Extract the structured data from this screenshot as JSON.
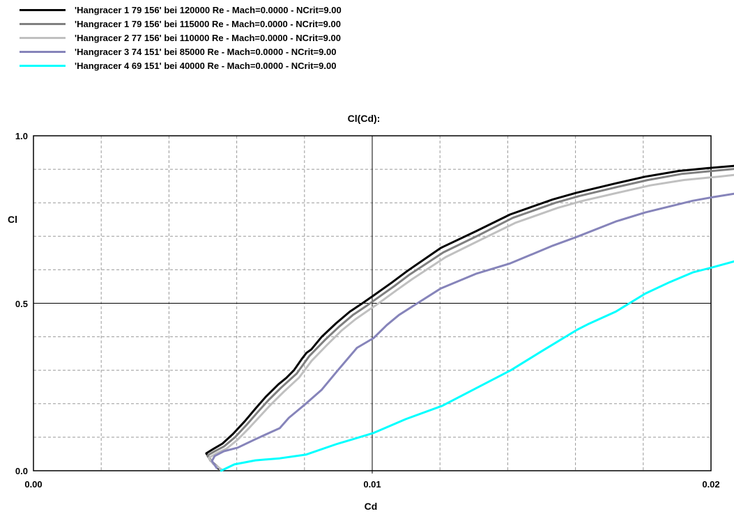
{
  "chart": {
    "title": "Cl(Cd):",
    "xlabel": "Cd",
    "ylabel": "Cl",
    "x_ticks": [
      {
        "value": 0.0,
        "label": "0.00"
      },
      {
        "value": 0.01,
        "label": "0.01"
      },
      {
        "value": 0.02,
        "label": "0.02"
      }
    ],
    "y_ticks": [
      {
        "value": 1.0,
        "label": "1.0"
      },
      {
        "value": 0.5,
        "label": "0.5"
      },
      {
        "value": 0.0,
        "label": "0.0"
      }
    ]
  },
  "colors": {
    "background": "#ffffff",
    "grid": "#999999",
    "axis": "#000000",
    "text": "#000000"
  },
  "chart_data": {
    "type": "line",
    "title": "Cl(Cd):",
    "xlabel": "Cd",
    "ylabel": "Cl",
    "xlim": [
      0.0,
      0.02
    ],
    "ylim": [
      0.0,
      1.0
    ],
    "x_grid_step": 0.002,
    "y_grid_step": 0.1,
    "grid": "dashed gray minor grid; solid black lines at Cd=0.01 and Cl=0.5; solid border box",
    "legend_position": "top-left above plot",
    "series": [
      {
        "name": "'Hangracer 1 79 156' bei 120000 Re - Mach=0.0000 - NCrit=9.00",
        "color": "#000000",
        "points": [
          [
            0.00546,
            0.006
          ],
          [
            0.00522,
            0.031
          ],
          [
            0.0051,
            0.052
          ],
          [
            0.00531,
            0.065
          ],
          [
            0.00558,
            0.081
          ],
          [
            0.00589,
            0.11
          ],
          [
            0.00624,
            0.148
          ],
          [
            0.00655,
            0.185
          ],
          [
            0.00686,
            0.221
          ],
          [
            0.00723,
            0.258
          ],
          [
            0.00746,
            0.277
          ],
          [
            0.00769,
            0.3
          ],
          [
            0.00793,
            0.335
          ],
          [
            0.00806,
            0.352
          ],
          [
            0.0082,
            0.362
          ],
          [
            0.00851,
            0.4
          ],
          [
            0.00893,
            0.44
          ],
          [
            0.00934,
            0.475
          ],
          [
            0.00971,
            0.5
          ],
          [
            0.01004,
            0.523
          ],
          [
            0.01058,
            0.562
          ],
          [
            0.01103,
            0.596
          ],
          [
            0.01202,
            0.665
          ],
          [
            0.01306,
            0.715
          ],
          [
            0.01407,
            0.765
          ],
          [
            0.01533,
            0.81
          ],
          [
            0.01603,
            0.83
          ],
          [
            0.01719,
            0.858
          ],
          [
            0.01806,
            0.878
          ],
          [
            0.01905,
            0.895
          ],
          [
            0.02007,
            0.905
          ],
          [
            0.02068,
            0.91
          ]
        ]
      },
      {
        "name": "'Hangracer 1 79 156' bei 115000 Re - Mach=0.0000 - NCrit=9.00",
        "color": "#808080",
        "points": [
          [
            0.00553,
            0.004
          ],
          [
            0.00527,
            0.027
          ],
          [
            0.00514,
            0.046
          ],
          [
            0.00535,
            0.058
          ],
          [
            0.00563,
            0.073
          ],
          [
            0.00595,
            0.1
          ],
          [
            0.0063,
            0.138
          ],
          [
            0.00662,
            0.175
          ],
          [
            0.00694,
            0.211
          ],
          [
            0.00731,
            0.248
          ],
          [
            0.00777,
            0.29
          ],
          [
            0.00814,
            0.342
          ],
          [
            0.0086,
            0.39
          ],
          [
            0.00902,
            0.43
          ],
          [
            0.00943,
            0.465
          ],
          [
            0.0098,
            0.49
          ],
          [
            0.01012,
            0.513
          ],
          [
            0.01066,
            0.552
          ],
          [
            0.01111,
            0.586
          ],
          [
            0.0121,
            0.652
          ],
          [
            0.01314,
            0.703
          ],
          [
            0.01415,
            0.755
          ],
          [
            0.01541,
            0.8
          ],
          [
            0.01611,
            0.82
          ],
          [
            0.01727,
            0.848
          ],
          [
            0.01814,
            0.868
          ],
          [
            0.01913,
            0.886
          ],
          [
            0.02015,
            0.896
          ],
          [
            0.02068,
            0.901
          ]
        ]
      },
      {
        "name": "'Hangracer 2 77 156' bei 110000 Re - Mach=0.0000 - NCrit=9.00",
        "color": "#c0c0c0",
        "points": [
          [
            0.00558,
            0.002
          ],
          [
            0.00531,
            0.02
          ],
          [
            0.00517,
            0.038
          ],
          [
            0.0054,
            0.052
          ],
          [
            0.0057,
            0.066
          ],
          [
            0.00602,
            0.092
          ],
          [
            0.00637,
            0.128
          ],
          [
            0.00669,
            0.163
          ],
          [
            0.00701,
            0.198
          ],
          [
            0.00738,
            0.235
          ],
          [
            0.00784,
            0.278
          ],
          [
            0.00821,
            0.328
          ],
          [
            0.00867,
            0.376
          ],
          [
            0.00909,
            0.418
          ],
          [
            0.0095,
            0.452
          ],
          [
            0.00987,
            0.478
          ],
          [
            0.01019,
            0.5
          ],
          [
            0.01073,
            0.54
          ],
          [
            0.01118,
            0.572
          ],
          [
            0.01217,
            0.638
          ],
          [
            0.01321,
            0.69
          ],
          [
            0.01422,
            0.74
          ],
          [
            0.01548,
            0.785
          ],
          [
            0.01618,
            0.805
          ],
          [
            0.01734,
            0.832
          ],
          [
            0.01821,
            0.852
          ],
          [
            0.0192,
            0.868
          ],
          [
            0.02022,
            0.878
          ],
          [
            0.02068,
            0.883
          ]
        ]
      },
      {
        "name": "'Hangracer 3 74 151' bei 85000 Re - Mach=0.0000 - NCrit=9.00",
        "color": "#8684ba",
        "points": [
          [
            0.00541,
            0.008
          ],
          [
            0.00527,
            0.029
          ],
          [
            0.00535,
            0.044
          ],
          [
            0.00562,
            0.058
          ],
          [
            0.00603,
            0.069
          ],
          [
            0.00651,
            0.092
          ],
          [
            0.00696,
            0.113
          ],
          [
            0.00727,
            0.127
          ],
          [
            0.00754,
            0.158
          ],
          [
            0.00779,
            0.179
          ],
          [
            0.00804,
            0.2
          ],
          [
            0.00851,
            0.242
          ],
          [
            0.00897,
            0.298
          ],
          [
            0.00934,
            0.342
          ],
          [
            0.00955,
            0.367
          ],
          [
            0.01004,
            0.396
          ],
          [
            0.01043,
            0.435
          ],
          [
            0.01079,
            0.465
          ],
          [
            0.0113,
            0.498
          ],
          [
            0.01202,
            0.544
          ],
          [
            0.01306,
            0.588
          ],
          [
            0.01407,
            0.619
          ],
          [
            0.01533,
            0.672
          ],
          [
            0.01603,
            0.698
          ],
          [
            0.01719,
            0.744
          ],
          [
            0.01806,
            0.771
          ],
          [
            0.01946,
            0.806
          ],
          [
            0.02007,
            0.817
          ],
          [
            0.02068,
            0.827
          ]
        ]
      },
      {
        "name": "'Hangracer 4 69 151' bei 40000 Re - Mach=0.0000 - NCrit=9.00",
        "color": "#00ffff",
        "points": [
          [
            0.00554,
            0.0
          ],
          [
            0.00593,
            0.019
          ],
          [
            0.00655,
            0.031
          ],
          [
            0.00727,
            0.037
          ],
          [
            0.00804,
            0.048
          ],
          [
            0.00893,
            0.079
          ],
          [
            0.01002,
            0.112
          ],
          [
            0.01099,
            0.154
          ],
          [
            0.01207,
            0.194
          ],
          [
            0.01306,
            0.246
          ],
          [
            0.01409,
            0.3
          ],
          [
            0.01502,
            0.358
          ],
          [
            0.01605,
            0.421
          ],
          [
            0.01636,
            0.437
          ],
          [
            0.01719,
            0.475
          ],
          [
            0.01806,
            0.529
          ],
          [
            0.01878,
            0.563
          ],
          [
            0.01946,
            0.592
          ],
          [
            0.02007,
            0.608
          ],
          [
            0.02068,
            0.625
          ]
        ]
      }
    ]
  }
}
